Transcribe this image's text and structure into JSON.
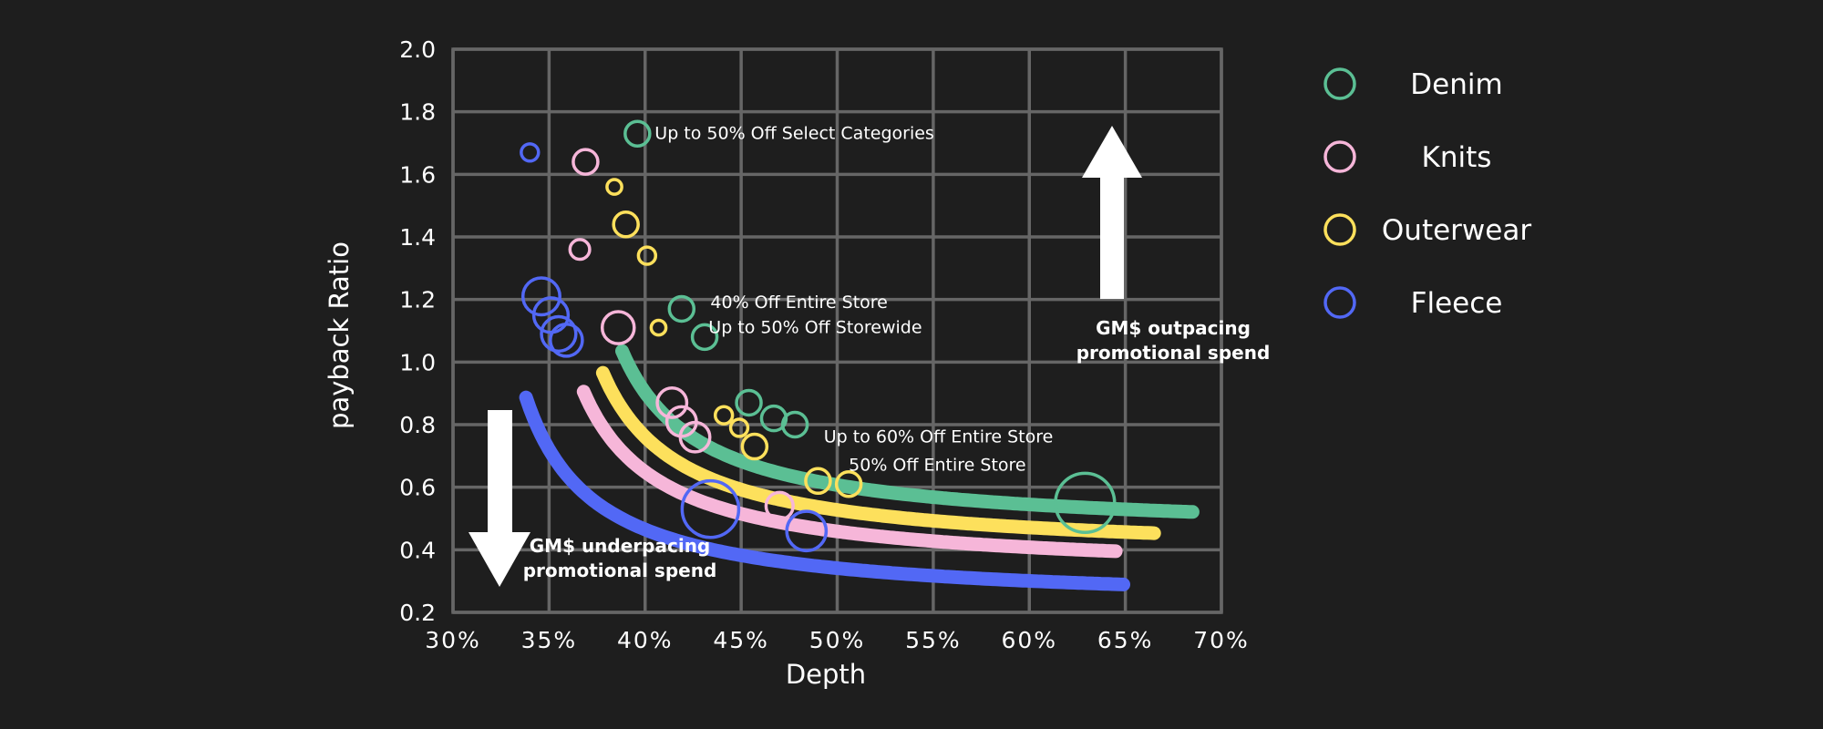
{
  "chart_data": {
    "type": "scatter",
    "xlabel": "Depth",
    "ylabel": "payback Ratio",
    "xlim": [
      30,
      70
    ],
    "ylim": [
      0.2,
      2.0
    ],
    "x_ticks": [
      30,
      35,
      40,
      45,
      50,
      55,
      60,
      65,
      70
    ],
    "x_tick_labels": [
      "30%",
      "35%",
      "40%",
      "45%",
      "50%",
      "55%",
      "60%",
      "65%",
      "70%"
    ],
    "y_ticks": [
      0.2,
      0.4,
      0.6,
      0.8,
      1.0,
      1.2,
      1.4,
      1.6,
      1.8,
      2.0
    ],
    "y_tick_labels": [
      "0.2",
      "0.4",
      "0.6",
      "0.8",
      "1.0",
      "1.2",
      "1.4",
      "1.6",
      "1.8",
      "2.0"
    ],
    "grid": true,
    "legend_position": "right",
    "series": [
      {
        "name": "Denim",
        "color": "#5bbf94",
        "trend": {
          "k": 2.4,
          "x0": 34.7,
          "c": 0.45,
          "x_range": [
            38.8,
            68.5
          ]
        },
        "points": [
          {
            "x": 39.6,
            "y": 1.73,
            "size": 1
          },
          {
            "x": 41.9,
            "y": 1.17,
            "size": 1
          },
          {
            "x": 43.1,
            "y": 1.08,
            "size": 1
          },
          {
            "x": 45.4,
            "y": 0.87,
            "size": 1
          },
          {
            "x": 46.7,
            "y": 0.82,
            "size": 1
          },
          {
            "x": 47.8,
            "y": 0.8,
            "size": 1
          },
          {
            "x": 62.9,
            "y": 0.55,
            "size": 2.4
          }
        ]
      },
      {
        "name": "Knits",
        "color": "#f6b6d9",
        "trend": {
          "k": 2.4,
          "x0": 32.7,
          "c": 0.32,
          "x_range": [
            36.8,
            64.5
          ]
        },
        "points": [
          {
            "x": 36.9,
            "y": 1.64,
            "size": 1
          },
          {
            "x": 36.6,
            "y": 1.36,
            "size": 0.8
          },
          {
            "x": 38.6,
            "y": 1.11,
            "size": 1.3
          },
          {
            "x": 41.4,
            "y": 0.87,
            "size": 1.2
          },
          {
            "x": 41.9,
            "y": 0.81,
            "size": 1.2
          },
          {
            "x": 42.6,
            "y": 0.76,
            "size": 1.2
          },
          {
            "x": 47.0,
            "y": 0.54,
            "size": 1.1
          }
        ]
      },
      {
        "name": "Outerwear",
        "color": "#fde05c",
        "trend": {
          "k": 2.4,
          "x0": 33.7,
          "c": 0.38,
          "x_range": [
            37.8,
            66.5
          ]
        },
        "points": [
          {
            "x": 38.4,
            "y": 1.56,
            "size": 0.6
          },
          {
            "x": 39.0,
            "y": 1.44,
            "size": 1
          },
          {
            "x": 40.1,
            "y": 1.34,
            "size": 0.7
          },
          {
            "x": 40.7,
            "y": 1.11,
            "size": 0.6
          },
          {
            "x": 44.1,
            "y": 0.83,
            "size": 0.7
          },
          {
            "x": 44.9,
            "y": 0.79,
            "size": 0.7
          },
          {
            "x": 45.7,
            "y": 0.73,
            "size": 1
          },
          {
            "x": 49.0,
            "y": 0.62,
            "size": 1
          },
          {
            "x": 50.6,
            "y": 0.61,
            "size": 1
          }
        ]
      },
      {
        "name": "Fleece",
        "color": "#5268f5",
        "trend": {
          "k": 2.4,
          "x0": 30.2,
          "c": 0.22,
          "x_range": [
            33.8,
            64.9
          ]
        },
        "points": [
          {
            "x": 34.0,
            "y": 1.67,
            "size": 0.7
          },
          {
            "x": 34.6,
            "y": 1.21,
            "size": 1.5
          },
          {
            "x": 35.1,
            "y": 1.15,
            "size": 1.4
          },
          {
            "x": 35.5,
            "y": 1.09,
            "size": 1.4
          },
          {
            "x": 35.9,
            "y": 1.07,
            "size": 1.3
          },
          {
            "x": 43.4,
            "y": 0.53,
            "size": 2.3
          },
          {
            "x": 48.4,
            "y": 0.46,
            "size": 1.6
          }
        ]
      }
    ],
    "annotations": [
      {
        "text": "Up to 50% Off Select Categories",
        "x": 40.5,
        "y": 1.73
      },
      {
        "text": "40% Off Entire Store",
        "x": 43.4,
        "y": 1.19
      },
      {
        "text": "Up to 50% Off Storewide",
        "x": 43.3,
        "y": 1.11
      },
      {
        "text": "Up to 60% Off Entire Store",
        "x": 49.3,
        "y": 0.76
      },
      {
        "text": "50% Off Entire Store",
        "x": 50.6,
        "y": 0.67
      }
    ],
    "callouts": [
      {
        "id": "outpacing",
        "direction": "up",
        "lines": [
          "GM$ outpacing",
          "promotional spend"
        ]
      },
      {
        "id": "underpacing",
        "direction": "down",
        "lines": [
          "GM$ underpacing",
          "promotional spend"
        ]
      }
    ]
  }
}
